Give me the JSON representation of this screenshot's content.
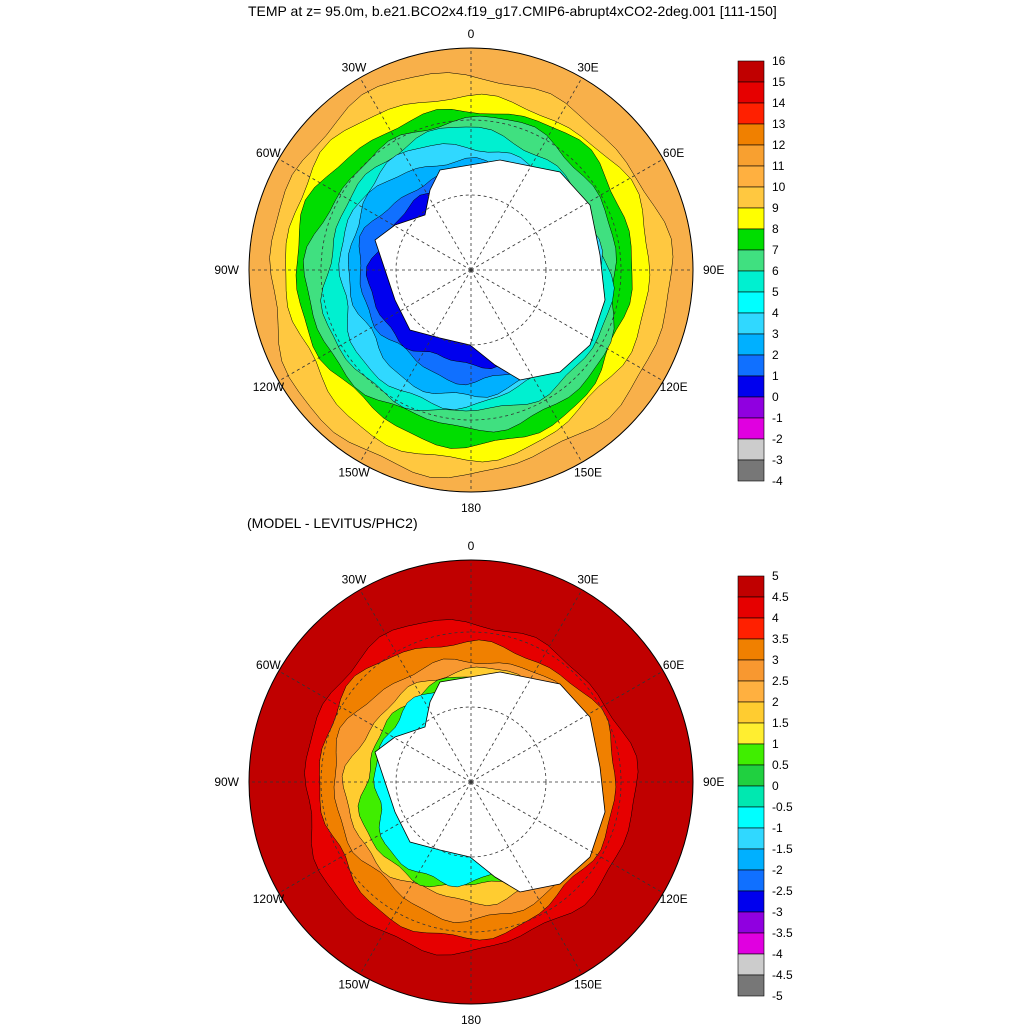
{
  "top_panel": {
    "title": "TEMP at z=  95.0m, b.e21.BCO2x4.f19_g17.CMIP6-abrupt4xCO2-2deg.001 [111-150]",
    "lon_labels": [
      "0",
      "30E",
      "60E",
      "90E",
      "120E",
      "150E",
      "180",
      "150W",
      "120W",
      "90W",
      "60W",
      "30W"
    ],
    "colorbar": {
      "ticks": [
        "16",
        "15",
        "14",
        "13",
        "12",
        "11",
        "10",
        "9",
        "8",
        "7",
        "6",
        "5",
        "4",
        "3",
        "2",
        "1",
        "0",
        "-1",
        "-2",
        "-3",
        "-4"
      ],
      "colors": [
        "#c00000",
        "#e60000",
        "#ff2000",
        "#f08000",
        "#f8a030",
        "#ffb040",
        "#ffc840",
        "#ffff00",
        "#00dd00",
        "#40e080",
        "#00f0d0",
        "#00ffff",
        "#30d8ff",
        "#00b0ff",
        "#1070ff",
        "#0000ee",
        "#9000e0",
        "#e000e0",
        "#cccccc",
        "#777777"
      ]
    },
    "bands": [
      {
        "r": 222,
        "color": "#f8b04a"
      },
      {
        "r": 200,
        "color": "#ffc840"
      },
      {
        "r": 182,
        "color": "#ffff00"
      },
      {
        "r": 168,
        "color": "#00dd00"
      },
      {
        "r": 155,
        "color": "#40e080"
      },
      {
        "r": 142,
        "color": "#00f0d0"
      },
      {
        "r": 130,
        "color": "#30d8ff"
      },
      {
        "r": 118,
        "color": "#00b0ff"
      },
      {
        "r": 104,
        "color": "#1070ff"
      },
      {
        "r": 92,
        "color": "#0000ee"
      }
    ]
  },
  "bottom_panel": {
    "title": "(MODEL - LEVITUS/PHC2)",
    "lon_labels": [
      "0",
      "30E",
      "60E",
      "90E",
      "120E",
      "150E",
      "180",
      "150W",
      "120W",
      "90W",
      "60W",
      "30W"
    ],
    "colorbar": {
      "ticks": [
        "5",
        "4.5",
        "4",
        "3.5",
        "3",
        "2.5",
        "2",
        "1.5",
        "1",
        "0.5",
        "0",
        "-0.5",
        "-1",
        "-1.5",
        "-2",
        "-2.5",
        "-3",
        "-3.5",
        "-4",
        "-4.5",
        "-5"
      ],
      "colors": [
        "#c00000",
        "#e60000",
        "#ff2000",
        "#f08000",
        "#f89830",
        "#ffb040",
        "#ffcc30",
        "#ffee30",
        "#40ee00",
        "#20d040",
        "#00e8b0",
        "#00ffff",
        "#30d8ff",
        "#00b0ff",
        "#1070ff",
        "#0000ee",
        "#9000e0",
        "#e000e0",
        "#cccccc",
        "#777777"
      ]
    },
    "bands": [
      {
        "r": 222,
        "color": "#c00000"
      },
      {
        "r": 165,
        "color": "#e60000"
      },
      {
        "r": 148,
        "color": "#f08000"
      },
      {
        "r": 130,
        "color": "#f89830"
      },
      {
        "r": 116,
        "color": "#ffcc30"
      },
      {
        "r": 104,
        "color": "#40ee00"
      },
      {
        "r": 95,
        "color": "#00ffff"
      }
    ]
  }
}
